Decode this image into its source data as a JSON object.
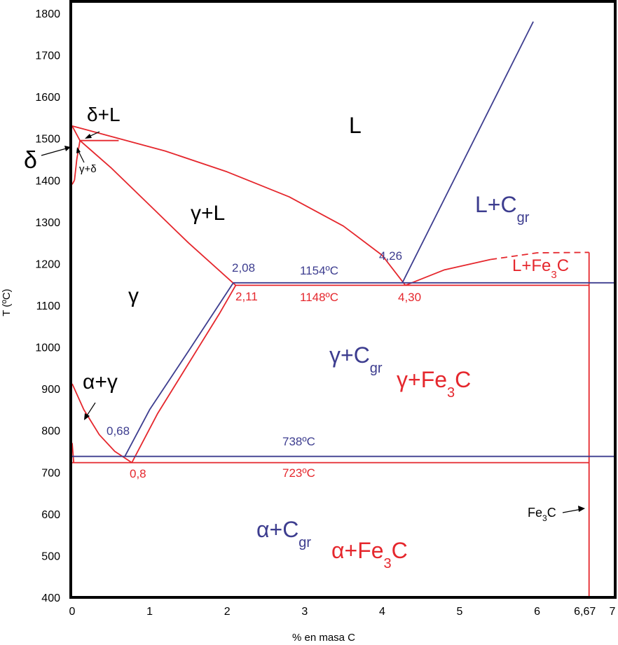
{
  "chart_data": {
    "type": "line",
    "xlabel": "% en masa C",
    "ylabel": "T (ºC)",
    "xlim": [
      0,
      7
    ],
    "ylim": [
      400,
      1800
    ],
    "x_ticks": [
      "0",
      "1",
      "2",
      "3",
      "4",
      "5",
      "6",
      "7"
    ],
    "x_tick_special": "6,67",
    "y_ticks": [
      "400",
      "500",
      "600",
      "700",
      "800",
      "900",
      "1000",
      "1100",
      "1200",
      "1300",
      "1400",
      "1500",
      "1600",
      "1700",
      "1800"
    ],
    "grid": false,
    "colors": {
      "metastable": "#e5272d",
      "stable": "#3d3d8f",
      "text": "#000000"
    },
    "series": [
      {
        "system": "metastable",
        "x": [
          0,
          0.1,
          0.6
        ],
        "y": [
          1530,
          1495,
          1495
        ]
      },
      {
        "system": "metastable",
        "x": [
          0,
          0.6,
          1.2,
          2.0,
          2.8,
          3.5,
          4.0,
          4.3
        ],
        "y": [
          1530,
          1500,
          1470,
          1420,
          1360,
          1290,
          1220,
          1148
        ]
      },
      {
        "system": "metastable",
        "x": [
          0.03,
          0.06,
          0.1
        ],
        "y": [
          1400,
          1450,
          1495
        ]
      },
      {
        "system": "metastable",
        "x": [
          0,
          0.03
        ],
        "y": [
          1390,
          1400
        ]
      },
      {
        "system": "metastable",
        "x": [
          0.1,
          0.5,
          1.0,
          1.5,
          2.11
        ],
        "y": [
          1495,
          1430,
          1340,
          1250,
          1148
        ]
      },
      {
        "system": "metastable",
        "x": [
          0.77,
          1.1,
          1.5,
          1.9,
          2.11
        ],
        "y": [
          723,
          840,
          960,
          1080,
          1148
        ]
      },
      {
        "system": "metastable",
        "x": [
          0,
          0.15,
          0.35,
          0.55,
          0.77
        ],
        "y": [
          912,
          850,
          790,
          750,
          723
        ]
      },
      {
        "system": "metastable",
        "x": [
          0,
          0.02
        ],
        "y": [
          770,
          723
        ]
      },
      {
        "system": "metastable",
        "x": [
          0,
          6.67
        ],
        "y": [
          723,
          723
        ]
      },
      {
        "system": "metastable",
        "x": [
          2.11,
          6.67
        ],
        "y": [
          1148,
          1148
        ]
      },
      {
        "system": "metastable",
        "x": [
          4.3,
          4.8,
          5.4
        ],
        "y": [
          1148,
          1185,
          1210
        ]
      },
      {
        "system": "metastable",
        "dashed": true,
        "x": [
          5.4,
          6.0,
          6.67
        ],
        "y": [
          1210,
          1226,
          1227
        ]
      },
      {
        "system": "metastable",
        "x": [
          6.67,
          6.67
        ],
        "y": [
          400,
          1227
        ]
      },
      {
        "system": "stable",
        "x": [
          0.68,
          1.0,
          1.5,
          2.08
        ],
        "y": [
          738,
          850,
          990,
          1154
        ]
      },
      {
        "system": "stable",
        "x": [
          0,
          7
        ],
        "y": [
          738,
          738
        ]
      },
      {
        "system": "stable",
        "x": [
          2.08,
          7
        ],
        "y": [
          1154,
          1154
        ]
      },
      {
        "system": "stable",
        "x": [
          4.26,
          5.95
        ],
        "y": [
          1154,
          1780
        ]
      }
    ],
    "annotations": {
      "L": "L",
      "delta_L": "δ+L",
      "delta": "δ",
      "gamma_delta": "γ+δ",
      "gamma_L": "γ+L",
      "gamma": "γ",
      "alpha_gamma": "α+γ",
      "L_Cgr": {
        "main": "L+C",
        "sub": "gr"
      },
      "L_Fe3C": {
        "a": "L+Fe",
        "sub": "3",
        "b": "C"
      },
      "gamma_Cgr": {
        "main": "γ+C",
        "sub": "gr"
      },
      "gamma_Fe3C": {
        "a": "γ+Fe",
        "sub": "3",
        "b": "C"
      },
      "alpha_Cgr": {
        "main": "α+C",
        "sub": "gr"
      },
      "alpha_Fe3C": {
        "a": "α+Fe",
        "sub": "3",
        "b": "C"
      },
      "Fe3C_line": {
        "a": "Fe",
        "sub": "3",
        "b": "C"
      },
      "pt_2_08": "2,08",
      "pt_2_11": "2,11",
      "pt_4_26": "4,26",
      "pt_4_30": "4,30",
      "pt_0_68": "0,68",
      "pt_0_8": "0,8",
      "t_1154": "1154ºC",
      "t_1148": "1148ºC",
      "t_738": "738ºC",
      "t_723": "723ºC"
    }
  }
}
